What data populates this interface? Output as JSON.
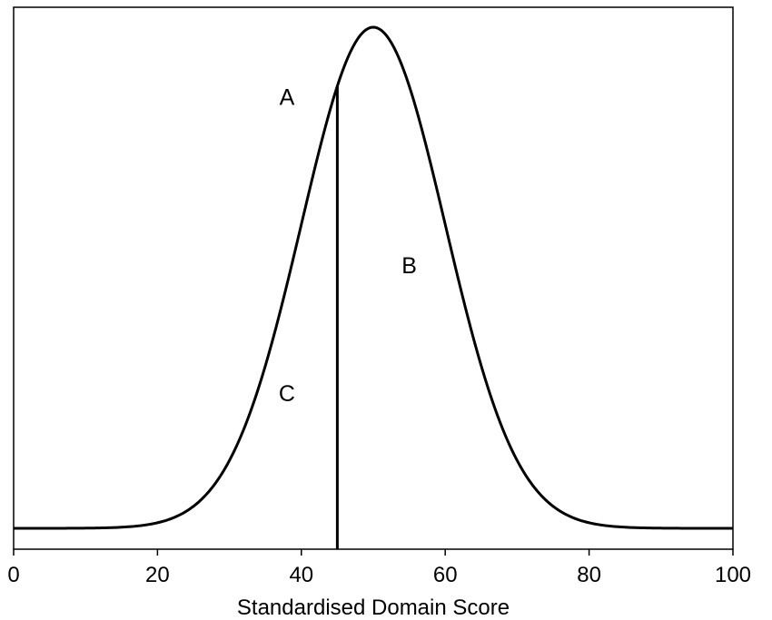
{
  "chart_data": {
    "type": "line",
    "xlabel": "Standardised Domain Score",
    "ylabel": "",
    "xlim": [
      0,
      100
    ],
    "x_ticks": [
      0,
      20,
      40,
      60,
      80,
      100
    ],
    "x_tick_labels": [
      "0",
      "20",
      "40",
      "60",
      "80",
      "100"
    ],
    "grid": false,
    "series": [
      {
        "distribution": "normal",
        "mean": 50,
        "sd": 10,
        "x": [
          0,
          10,
          20,
          25,
          30,
          35,
          40,
          45,
          50,
          55,
          60,
          65,
          70,
          75,
          80,
          90,
          100
        ],
        "y": [
          0.0,
          0.0,
          0.0004,
          0.0018,
          0.0054,
          0.013,
          0.0242,
          0.0352,
          0.0399,
          0.0352,
          0.0242,
          0.013,
          0.0054,
          0.0018,
          0.0004,
          0.0,
          0.0
        ]
      }
    ],
    "vertical_line": {
      "x": 45
    },
    "annotations": [
      {
        "text": "A",
        "x": 38,
        "y": 0.0342
      },
      {
        "text": "B",
        "x": 55,
        "y": 0.0208
      },
      {
        "text": "C",
        "x": 38,
        "y": 0.0106
      }
    ]
  }
}
